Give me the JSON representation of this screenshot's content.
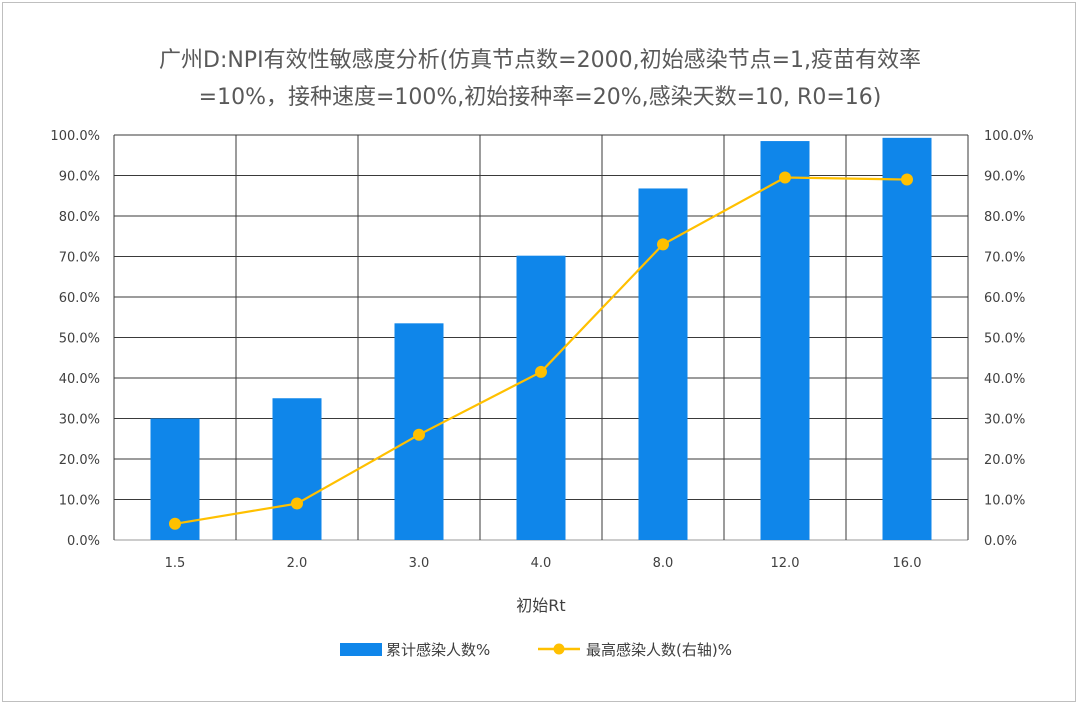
{
  "chart_data": {
    "type": "bar+line",
    "title_line1": "广州D:NPI有效性敏感度分析(仿真节点数=2000,初始感染节点=1,疫苗有效率",
    "title_line2": "=10%，接种速度=100%,初始接种率=20%,感染天数=10, R0=16)",
    "xlabel": "初始Rt",
    "categories": [
      "1.5",
      "2.0",
      "3.0",
      "4.0",
      "8.0",
      "12.0",
      "16.0"
    ],
    "y_ticks": [
      "0.0%",
      "10.0%",
      "20.0%",
      "30.0%",
      "40.0%",
      "50.0%",
      "60.0%",
      "70.0%",
      "80.0%",
      "90.0%",
      "100.0%"
    ],
    "y2_ticks": [
      "0.0%",
      "10.0%",
      "20.0%",
      "30.0%",
      "40.0%",
      "50.0%",
      "60.0%",
      "70.0%",
      "80.0%",
      "90.0%",
      "100.0%"
    ],
    "ylim": [
      0,
      100
    ],
    "y2lim": [
      0,
      100
    ],
    "grid": true,
    "legend_position": "bottom",
    "series": [
      {
        "name": "累计感染人数%",
        "type": "bar",
        "axis": "left",
        "color": "#0f86ea",
        "values": [
          30.0,
          35.0,
          53.5,
          70.2,
          86.8,
          98.5,
          99.3
        ]
      },
      {
        "name": "最高感染人数(右轴)%",
        "type": "line",
        "axis": "right",
        "color": "#ffc000",
        "values": [
          4.0,
          9.0,
          26.0,
          41.5,
          73.0,
          89.5,
          89.0
        ]
      }
    ]
  }
}
